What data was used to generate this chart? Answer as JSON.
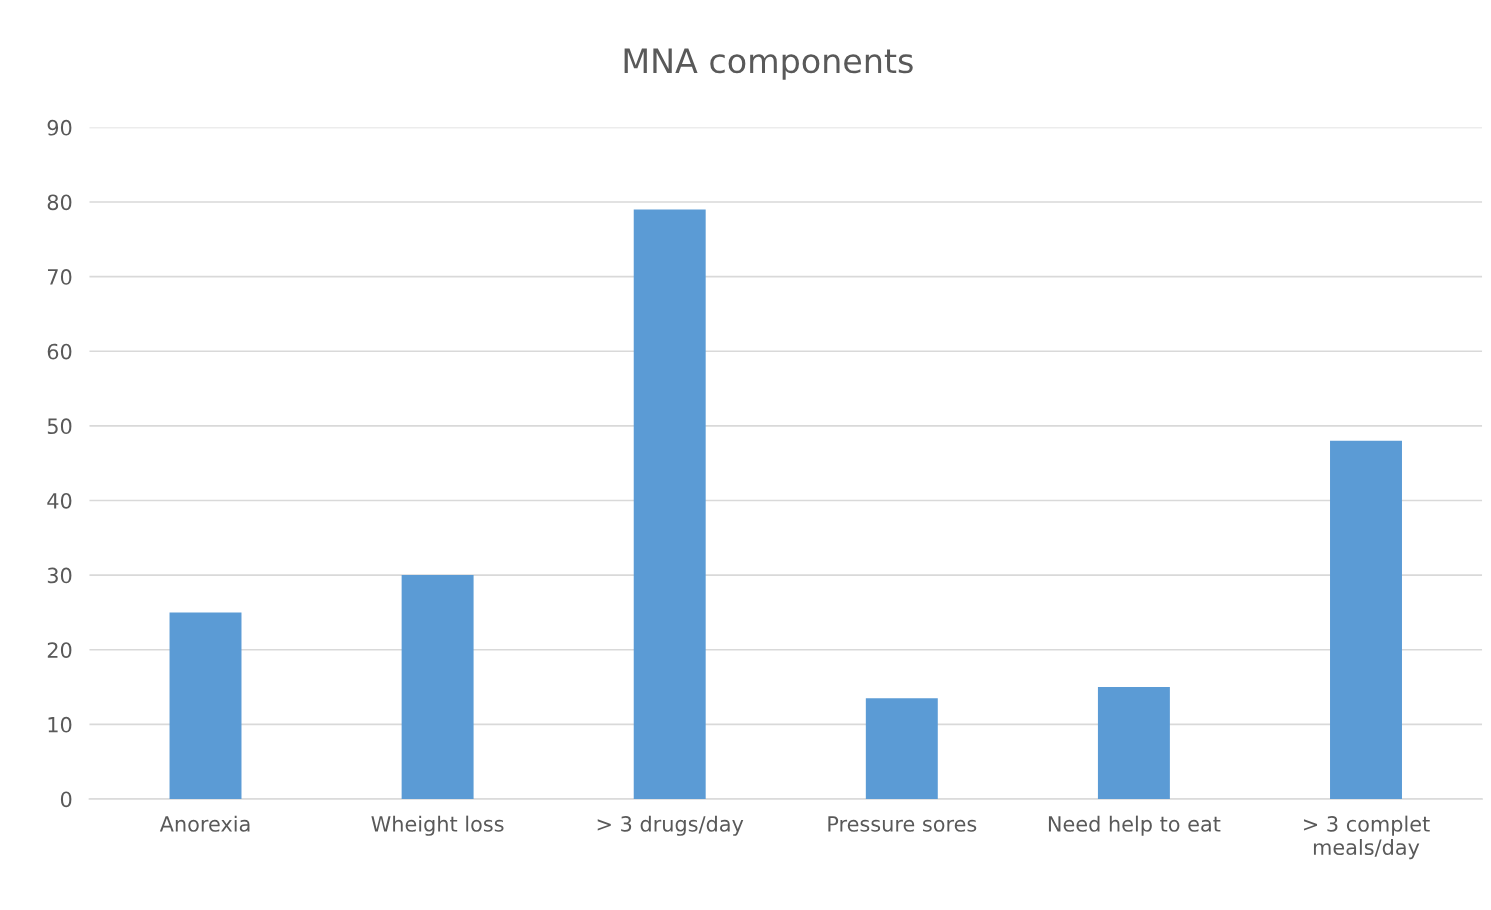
{
  "chart_data": {
    "type": "bar",
    "title": "MNA components",
    "categories": [
      "Anorexia",
      "Wheight loss",
      "> 3 drugs/day",
      "Pressure sores",
      "Need help to eat",
      "> 3 complet\nmeals/day"
    ],
    "values": [
      25,
      30,
      79,
      13.5,
      15,
      48
    ],
    "color": "#5b9bd5",
    "ylim": [
      0,
      90
    ],
    "yticks": [
      0,
      10,
      20,
      30,
      40,
      50,
      60,
      70,
      80,
      90
    ],
    "grid": "y"
  }
}
